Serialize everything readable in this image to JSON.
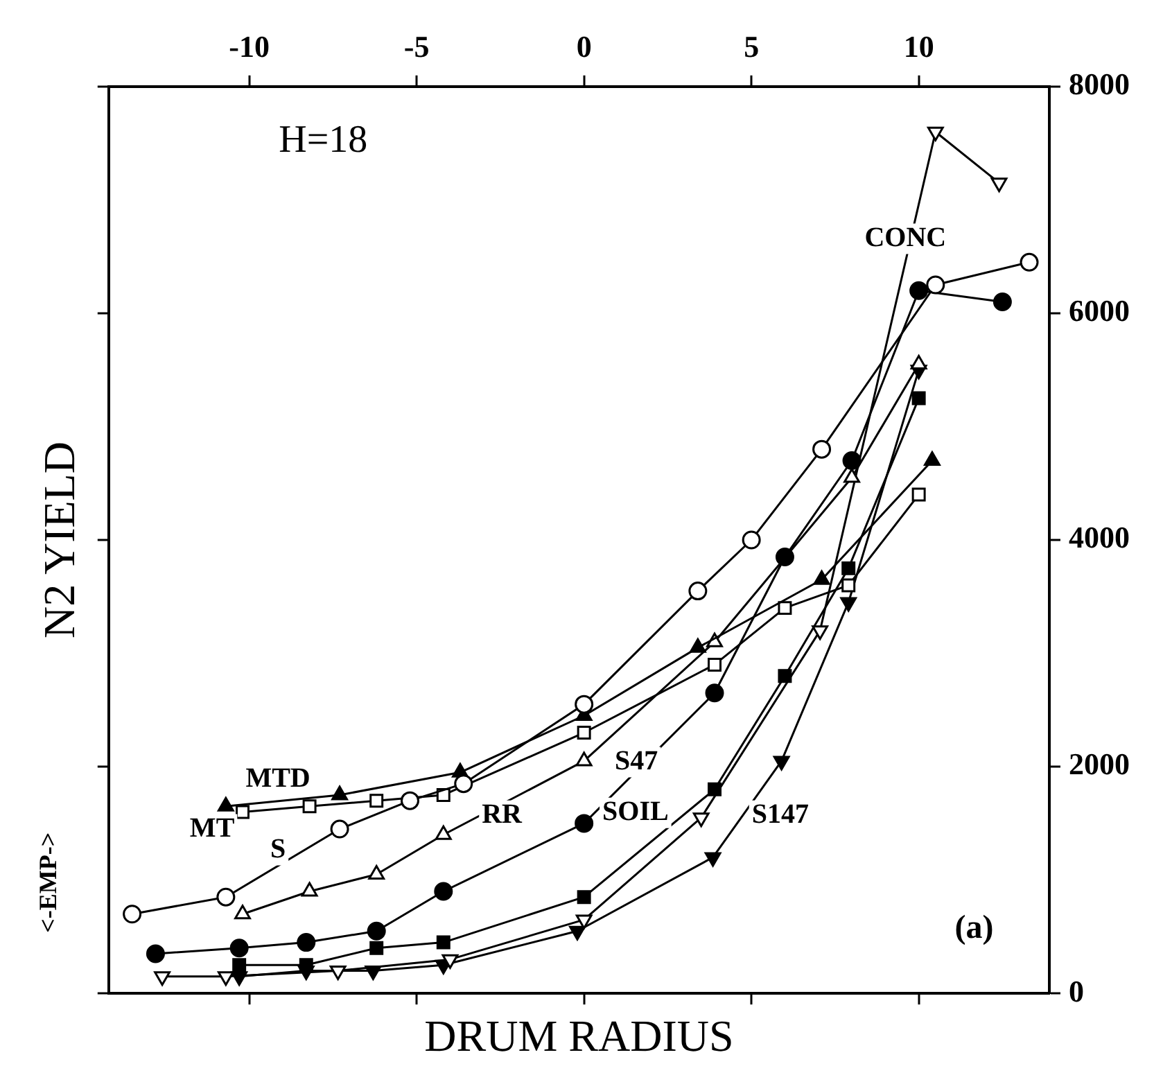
{
  "chart_data": {
    "type": "line",
    "xlabel": "DRUM RADIUS",
    "ylabel": "N2 YIELD",
    "xlim": [
      -14.2,
      13.9
    ],
    "xticks": [
      -10,
      -5,
      0,
      5,
      10
    ],
    "ylim": [
      0,
      8000
    ],
    "yticks": [
      0,
      2000,
      4000,
      6000,
      8000
    ],
    "grid": false,
    "legend": false,
    "line_style": "solid",
    "annotations": [
      "H=18",
      "(a)",
      "<-EMP->",
      "MTD",
      "MT",
      "S",
      "RR",
      "S47",
      "SOIL",
      "S147",
      "CONC"
    ],
    "series": [
      {
        "color": "#000000",
        "marker": "circle-open",
        "x": [
          -13.5,
          -10.7,
          -7.3,
          -5.2,
          -3.6,
          0,
          3.4,
          5,
          7.1,
          10.5,
          13.3
        ],
        "values": [
          700,
          850,
          1450,
          1700,
          1850,
          2550,
          3550,
          4000,
          4800,
          6250,
          6450
        ]
      },
      {
        "color": "#000000",
        "marker": "triangle",
        "x": [
          -10.7,
          -7.3,
          -3.7,
          0,
          3.4,
          7.1,
          10.4
        ],
        "values": [
          1650,
          1750,
          1950,
          2450,
          3050,
          3650,
          4700
        ]
      },
      {
        "color": "#000000",
        "marker": "square-open",
        "x": [
          -10.2,
          -8.2,
          -6.2,
          -4.2,
          0,
          3.9,
          6,
          7.9,
          10
        ],
        "values": [
          1600,
          1650,
          1700,
          1750,
          2300,
          2900,
          3400,
          3600,
          4400
        ]
      },
      {
        "color": "#000000",
        "marker": "triangle-open",
        "x": [
          -10.2,
          -8.2,
          -6.2,
          -4.2,
          0,
          3.9,
          8,
          10
        ],
        "values": [
          700,
          900,
          1050,
          1400,
          2050,
          3100,
          4550,
          5550
        ]
      },
      {
        "color": "#000000",
        "marker": "circle",
        "x": [
          -12.8,
          -10.3,
          -8.3,
          -6.2,
          -4.2,
          0,
          3.9,
          6,
          8,
          10,
          12.5
        ],
        "values": [
          350,
          400,
          450,
          550,
          900,
          1500,
          2650,
          3850,
          4700,
          6200,
          6100
        ]
      },
      {
        "color": "#000000",
        "marker": "square",
        "x": [
          -10.3,
          -8.3,
          -6.2,
          -4.2,
          0,
          3.9,
          6,
          7.9,
          10
        ],
        "values": [
          250,
          250,
          400,
          450,
          850,
          1800,
          2800,
          3750,
          5250
        ]
      },
      {
        "color": "#000000",
        "marker": "triangle-down-open",
        "x": [
          -12.6,
          -10.7,
          -7.35,
          -4,
          0,
          3.5,
          7.05,
          10.5,
          12.4
        ],
        "values": [
          150,
          150,
          200,
          300,
          650,
          1550,
          3200,
          7600,
          7150
        ]
      },
      {
        "color": "#000000",
        "marker": "triangle-down",
        "x": [
          -10.3,
          -8.3,
          -6.3,
          -4.2,
          -0.2,
          3.85,
          5.9,
          7.9,
          10
        ],
        "values": [
          150,
          200,
          200,
          250,
          550,
          1200,
          2050,
          3450,
          5500
        ]
      }
    ]
  }
}
